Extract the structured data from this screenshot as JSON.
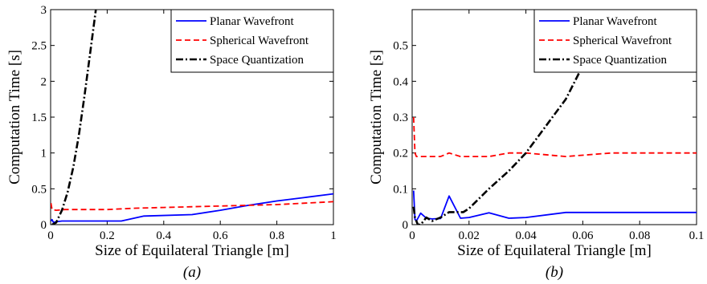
{
  "chart_data": [
    {
      "type": "line",
      "xlabel": "Size of Equilateral Triangle [m]",
      "ylabel": "Computation Time [s]",
      "caption": "(a)",
      "xlim": [
        0,
        1
      ],
      "ylim": [
        0,
        3
      ],
      "xticks": [
        0,
        0.2,
        0.4,
        0.6,
        0.8,
        1
      ],
      "xtick_labels": [
        "0",
        "0.2",
        "0.4",
        "0.6",
        "0.8",
        "1"
      ],
      "yticks": [
        0,
        0.5,
        1,
        1.5,
        2,
        2.5,
        3
      ],
      "ytick_labels": [
        "0",
        "0.5",
        "1",
        "1.5",
        "2",
        "2.5",
        "3"
      ],
      "legend_position": "top-right",
      "series": [
        {
          "name": "Planar Wavefront",
          "color": "#0000ff",
          "dash": "solid",
          "x": [
            0.001,
            0.005,
            0.01,
            0.02,
            0.04,
            0.1,
            0.25,
            0.33,
            0.5,
            0.6,
            0.7,
            0.8,
            0.9,
            1.0
          ],
          "y": [
            0.05,
            0.07,
            0.03,
            0.04,
            0.05,
            0.05,
            0.05,
            0.12,
            0.14,
            0.2,
            0.27,
            0.33,
            0.38,
            0.43
          ]
        },
        {
          "name": "Spherical Wavefront",
          "color": "#ff0000",
          "dash": "dashed",
          "x": [
            0.001,
            0.005,
            0.02,
            0.05,
            0.1,
            0.2,
            0.3,
            0.4,
            0.5,
            0.6,
            0.7,
            0.8,
            0.9,
            1.0
          ],
          "y": [
            0.3,
            0.21,
            0.2,
            0.21,
            0.21,
            0.21,
            0.23,
            0.24,
            0.25,
            0.26,
            0.27,
            0.28,
            0.3,
            0.32
          ]
        },
        {
          "name": "Space Quantization",
          "color": "#000000",
          "dash": "dashdot",
          "x": [
            0.005,
            0.02,
            0.04,
            0.06,
            0.08,
            0.1,
            0.12,
            0.14,
            0.16
          ],
          "y": [
            0.0,
            0.03,
            0.2,
            0.45,
            0.8,
            1.25,
            1.8,
            2.4,
            3.0
          ]
        }
      ]
    },
    {
      "type": "line",
      "xlabel": "Size of Equilateral Triangle [m]",
      "ylabel": "Computation Time [s]",
      "caption": "(b)",
      "xlim": [
        0,
        0.1
      ],
      "ylim": [
        0,
        0.6
      ],
      "xticks": [
        0,
        0.02,
        0.04,
        0.06,
        0.08,
        0.1
      ],
      "xtick_labels": [
        "0",
        "0.02",
        "0.04",
        "0.06",
        "0.08",
        "0.1"
      ],
      "yticks": [
        0,
        0.1,
        0.2,
        0.3,
        0.4,
        0.5
      ],
      "ytick_labels": [
        "0",
        "0.1",
        "0.2",
        "0.3",
        "0.4",
        "0.5"
      ],
      "legend_position": "top-right",
      "series": [
        {
          "name": "Planar Wavefront",
          "color": "#0000ff",
          "dash": "solid",
          "x": [
            0.0005,
            0.001,
            0.0015,
            0.003,
            0.005,
            0.007,
            0.01,
            0.013,
            0.017,
            0.02,
            0.027,
            0.034,
            0.04,
            0.054,
            0.07,
            0.1
          ],
          "y": [
            0.095,
            0.015,
            0.01,
            0.032,
            0.018,
            0.016,
            0.017,
            0.08,
            0.018,
            0.02,
            0.033,
            0.018,
            0.02,
            0.034,
            0.034,
            0.034
          ]
        },
        {
          "name": "Spherical Wavefront",
          "color": "#ff0000",
          "dash": "dashed",
          "x": [
            0.0005,
            0.001,
            0.0015,
            0.003,
            0.005,
            0.01,
            0.013,
            0.017,
            0.02,
            0.027,
            0.034,
            0.04,
            0.054,
            0.07,
            0.08,
            0.1
          ],
          "y": [
            0.3,
            0.2,
            0.19,
            0.19,
            0.19,
            0.19,
            0.2,
            0.19,
            0.19,
            0.19,
            0.2,
            0.2,
            0.19,
            0.2,
            0.2,
            0.2
          ]
        },
        {
          "name": "Space Quantization",
          "color": "#000000",
          "dash": "dashdot",
          "x": [
            0.0005,
            0.001,
            0.002,
            0.003,
            0.005,
            0.007,
            0.01,
            0.013,
            0.015,
            0.018,
            0.02,
            0.027,
            0.034,
            0.04,
            0.054,
            0.07
          ],
          "y": [
            0.05,
            0.02,
            0.0,
            0.0,
            0.02,
            0.01,
            0.02,
            0.035,
            0.035,
            0.035,
            0.045,
            0.1,
            0.15,
            0.2,
            0.35,
            0.6
          ]
        }
      ]
    }
  ]
}
